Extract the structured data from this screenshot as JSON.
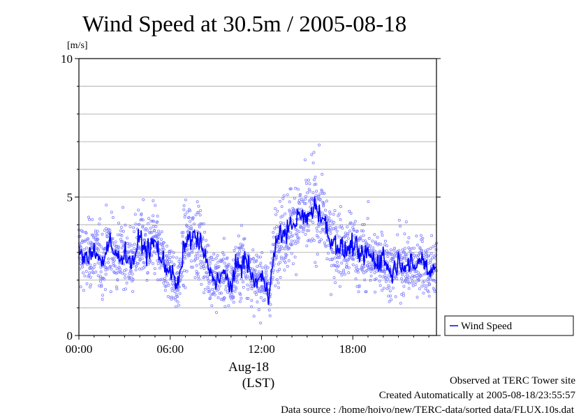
{
  "chart_data": {
    "type": "scatter",
    "title": "Wind Speed at 30.5m / 2005-08-18",
    "ylabel": "[m/s]",
    "ylim": [
      0,
      10
    ],
    "yticks": [
      "0",
      "5",
      "10"
    ],
    "xlim_hours": [
      0,
      23.5
    ],
    "xticks": [
      {
        "hour": 0,
        "label": "00:00"
      },
      {
        "hour": 6,
        "label": "06:00"
      },
      {
        "hour": 12,
        "label": "12:00"
      },
      {
        "hour": 18,
        "label": "18:00"
      }
    ],
    "x_date_label": "Aug-18",
    "xlabel": "(LST)",
    "grid": true,
    "legend_position": "bottom-right, outside plot",
    "series": [
      {
        "name": "Wind Speed",
        "color": "#0000ff",
        "scatter_color": "#8080ff",
        "hours": [
          0.0,
          0.5,
          1.0,
          1.5,
          2.0,
          2.5,
          3.0,
          3.5,
          4.0,
          4.5,
          5.0,
          5.5,
          6.0,
          6.5,
          7.0,
          7.5,
          8.0,
          8.5,
          9.0,
          9.5,
          10.0,
          10.5,
          11.0,
          11.5,
          12.0,
          12.5,
          13.0,
          13.5,
          14.0,
          14.5,
          15.0,
          15.5,
          16.0,
          16.5,
          17.0,
          17.5,
          18.0,
          18.5,
          19.0,
          19.5,
          20.0,
          20.5,
          21.0,
          21.5,
          22.0,
          22.5,
          23.0,
          23.5
        ],
        "values": [
          3.0,
          2.7,
          3.2,
          2.6,
          3.3,
          2.8,
          3.0,
          2.6,
          3.5,
          3.0,
          3.4,
          2.6,
          2.4,
          1.7,
          3.4,
          3.6,
          3.3,
          2.4,
          2.0,
          2.2,
          1.8,
          2.6,
          2.7,
          1.9,
          2.1,
          1.6,
          3.5,
          3.7,
          4.0,
          4.3,
          4.2,
          4.7,
          4.3,
          3.5,
          3.3,
          3.0,
          3.3,
          2.8,
          3.0,
          2.6,
          2.9,
          2.2,
          2.7,
          2.6,
          2.4,
          2.8,
          2.3,
          2.6
        ]
      }
    ]
  },
  "footer": {
    "line1": "Observed at TERC Tower site",
    "line2": "Created Automatically at 2005-08-18/23:55:57",
    "line3": "Data source : /home/hoivo/new/TERC-data/sorted  data/FLUX.10s.dat"
  }
}
